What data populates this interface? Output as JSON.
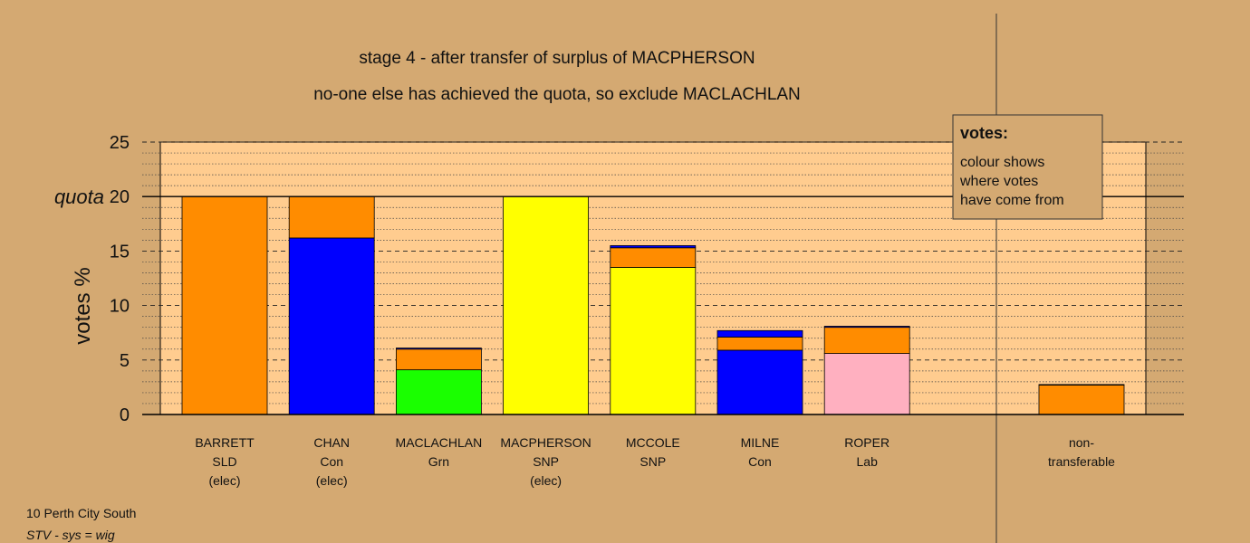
{
  "page": {
    "title_line1": "stage 4 - after transfer of surplus of MACPHERSON",
    "title_line2": "no-one else has achieved the quota, so exclude MACLACHLAN",
    "footer_line1": "10 Perth City South",
    "footer_line2": "STV - sys = wig"
  },
  "colors": {
    "background": "#d4a972",
    "plot_area": "#ffcc8f",
    "orange": "#ff8c00",
    "blue": "#0000ff",
    "green": "#1aff00",
    "yellow": "#ffff00",
    "pink": "#ffb0c0"
  },
  "chart_data": {
    "type": "bar",
    "stacked": true,
    "ylabel": "votes %",
    "ylim": [
      0,
      25
    ],
    "yticks": [
      0,
      5,
      10,
      15,
      20,
      25
    ],
    "quota": 20,
    "quota_label": "quota",
    "legend": {
      "title": "votes:",
      "text_lines": [
        "colour shows",
        "where votes",
        "have come from"
      ],
      "placement": "top-right"
    },
    "candidates": [
      {
        "lines": [
          "BARRETT",
          "SLD",
          "(elec)"
        ],
        "segments": [
          {
            "color": "#ff8c00",
            "value": 20.0
          }
        ]
      },
      {
        "lines": [
          "CHAN",
          "Con",
          "(elec)"
        ],
        "segments": [
          {
            "color": "#0000ff",
            "value": 16.2
          },
          {
            "color": "#ff8c00",
            "value": 3.8
          }
        ]
      },
      {
        "lines": [
          "MACLACHLAN",
          "Grn"
        ],
        "segments": [
          {
            "color": "#1aff00",
            "value": 4.1
          },
          {
            "color": "#ff8c00",
            "value": 1.9
          },
          {
            "color": "#0000ff",
            "value": 0.1
          }
        ]
      },
      {
        "lines": [
          "MACPHERSON",
          "SNP",
          "(elec)"
        ],
        "segments": [
          {
            "color": "#ffff00",
            "value": 20.0
          }
        ]
      },
      {
        "lines": [
          "MCCOLE",
          "SNP"
        ],
        "segments": [
          {
            "color": "#ffff00",
            "value": 13.5
          },
          {
            "color": "#ff8c00",
            "value": 1.8
          },
          {
            "color": "#0000ff",
            "value": 0.2
          }
        ]
      },
      {
        "lines": [
          "MILNE",
          "Con"
        ],
        "segments": [
          {
            "color": "#0000ff",
            "value": 5.9
          },
          {
            "color": "#ff8c00",
            "value": 1.2
          },
          {
            "color": "#0000ff",
            "value": 0.6
          }
        ]
      },
      {
        "lines": [
          "ROPER",
          "Lab"
        ],
        "segments": [
          {
            "color": "#ffb0c0",
            "value": 5.6
          },
          {
            "color": "#ff8c00",
            "value": 2.4
          },
          {
            "color": "#0000ff",
            "value": 0.1
          }
        ]
      }
    ],
    "nontransferable": {
      "lines": [
        "non-",
        "transferable"
      ],
      "segments": [
        {
          "color": "#ff8c00",
          "value": 2.7
        },
        {
          "color": "#0000ff",
          "value": 0.05
        }
      ]
    }
  }
}
